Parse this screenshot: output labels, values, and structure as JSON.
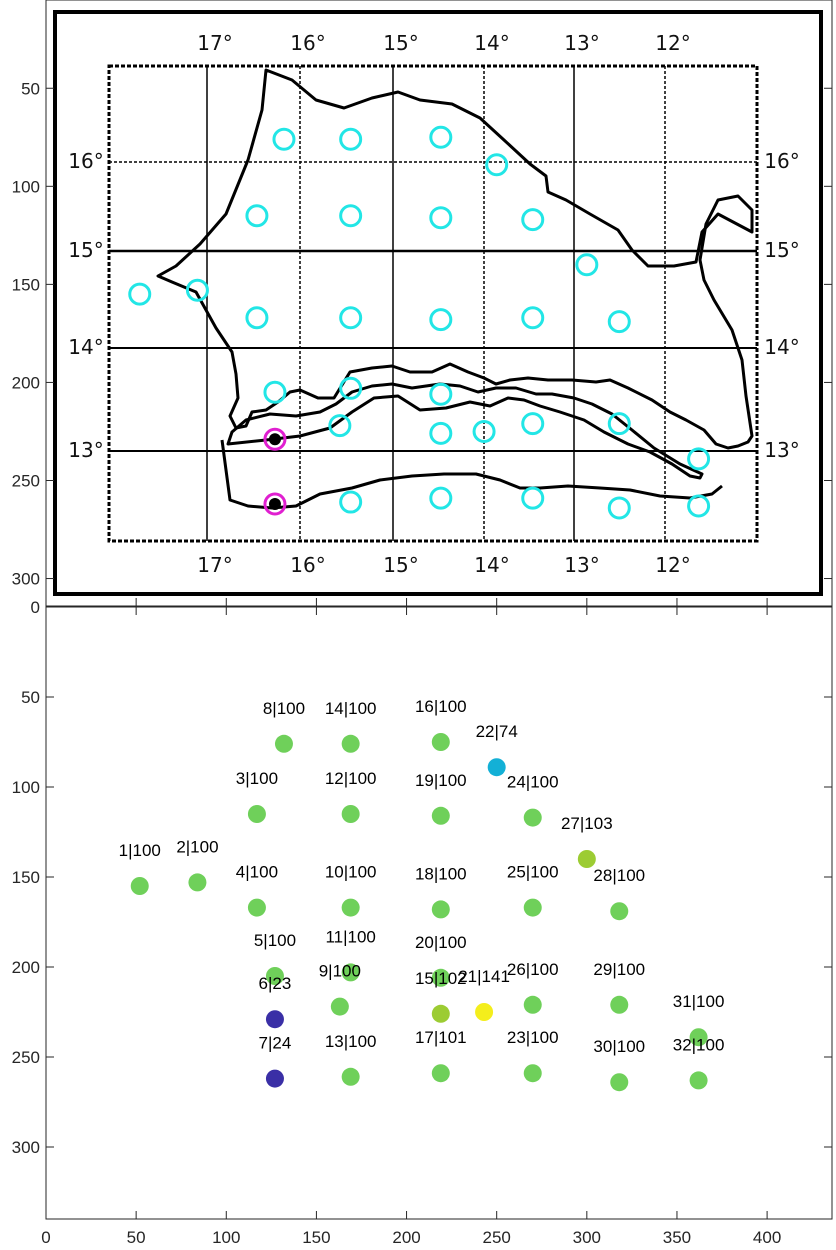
{
  "chart_data": [
    {
      "type": "map",
      "map_labels": {
        "top_longitudes": [
          "17°",
          "16°",
          "15°",
          "14°",
          "13°",
          "12°"
        ],
        "bottom_longitudes": [
          "17°",
          "16°",
          "15°",
          "14°",
          "13°",
          "12°"
        ],
        "left_latitudes": [
          "16°",
          "15°",
          "14°",
          "13°"
        ],
        "right_latitudes": [
          "16°",
          "15°",
          "14°",
          "13°"
        ]
      },
      "xlim": [
        0,
        436
      ],
      "ylim": [
        5,
        314
      ],
      "yticks": [
        50,
        100,
        150,
        200,
        250,
        300
      ],
      "ytick_labels": [
        "50",
        "100",
        "150",
        "200",
        "250",
        "300"
      ],
      "stations": [
        {
          "x": 52,
          "y": 155,
          "ring": "cyan"
        },
        {
          "x": 84,
          "y": 153,
          "ring": "cyan"
        },
        {
          "x": 117,
          "y": 115,
          "ring": "cyan"
        },
        {
          "x": 117,
          "y": 167,
          "ring": "cyan"
        },
        {
          "x": 127,
          "y": 205,
          "ring": "cyan"
        },
        {
          "x": 127,
          "y": 229,
          "ring": "magenta"
        },
        {
          "x": 127,
          "y": 262,
          "ring": "magenta"
        },
        {
          "x": 132,
          "y": 76,
          "ring": "cyan"
        },
        {
          "x": 163,
          "y": 222,
          "ring": "cyan"
        },
        {
          "x": 169,
          "y": 167,
          "ring": "cyan"
        },
        {
          "x": 169,
          "y": 203,
          "ring": "cyan"
        },
        {
          "x": 169,
          "y": 115,
          "ring": "cyan"
        },
        {
          "x": 169,
          "y": 261,
          "ring": "cyan"
        },
        {
          "x": 169,
          "y": 76,
          "ring": "cyan"
        },
        {
          "x": 219,
          "y": 226,
          "ring": "cyan"
        },
        {
          "x": 219,
          "y": 75,
          "ring": "cyan"
        },
        {
          "x": 219,
          "y": 259,
          "ring": "cyan"
        },
        {
          "x": 219,
          "y": 168,
          "ring": "cyan"
        },
        {
          "x": 219,
          "y": 116,
          "ring": "cyan"
        },
        {
          "x": 219,
          "y": 206,
          "ring": "cyan"
        },
        {
          "x": 243,
          "y": 225,
          "ring": "cyan"
        },
        {
          "x": 250,
          "y": 89,
          "ring": "cyan"
        },
        {
          "x": 270,
          "y": 259,
          "ring": "cyan"
        },
        {
          "x": 270,
          "y": 117,
          "ring": "cyan"
        },
        {
          "x": 270,
          "y": 167,
          "ring": "cyan"
        },
        {
          "x": 270,
          "y": 221,
          "ring": "cyan"
        },
        {
          "x": 300,
          "y": 140,
          "ring": "cyan"
        },
        {
          "x": 318,
          "y": 169,
          "ring": "cyan"
        },
        {
          "x": 318,
          "y": 221,
          "ring": "cyan"
        },
        {
          "x": 318,
          "y": 264,
          "ring": "cyan"
        },
        {
          "x": 362,
          "y": 239,
          "ring": "cyan"
        },
        {
          "x": 362,
          "y": 263,
          "ring": "cyan"
        }
      ]
    },
    {
      "type": "scatter",
      "xlim": [
        0,
        436
      ],
      "ylim": [
        0,
        340
      ],
      "xticks": [
        0,
        50,
        100,
        150,
        200,
        250,
        300,
        350,
        400
      ],
      "xtick_labels": [
        "0",
        "50",
        "100",
        "150",
        "200",
        "250",
        "300",
        "350",
        "400"
      ],
      "yticks": [
        0,
        50,
        100,
        150,
        200,
        250,
        300
      ],
      "ytick_labels": [
        "0",
        "50",
        "100",
        "150",
        "200",
        "250",
        "300"
      ],
      "colors": {
        "green": "#6fd05a",
        "olive": "#9ccc33",
        "yellow": "#f4ee1c",
        "cyan": "#13b0d6",
        "navy": "#3a2fa6"
      },
      "points": [
        {
          "label": "1|100",
          "x": 52,
          "y": 155,
          "color": "green"
        },
        {
          "label": "2|100",
          "x": 84,
          "y": 153,
          "color": "green"
        },
        {
          "label": "3|100",
          "x": 117,
          "y": 115,
          "color": "green"
        },
        {
          "label": "4|100",
          "x": 117,
          "y": 167,
          "color": "green"
        },
        {
          "label": "5|100",
          "x": 127,
          "y": 205,
          "color": "green"
        },
        {
          "label": "6|23",
          "x": 127,
          "y": 229,
          "color": "navy"
        },
        {
          "label": "7|24",
          "x": 127,
          "y": 262,
          "color": "navy"
        },
        {
          "label": "8|100",
          "x": 132,
          "y": 76,
          "color": "green"
        },
        {
          "label": "9|100",
          "x": 163,
          "y": 222,
          "color": "green"
        },
        {
          "label": "10|100",
          "x": 169,
          "y": 167,
          "color": "green"
        },
        {
          "label": "11|100",
          "x": 169,
          "y": 203,
          "color": "green"
        },
        {
          "label": "12|100",
          "x": 169,
          "y": 115,
          "color": "green"
        },
        {
          "label": "13|100",
          "x": 169,
          "y": 261,
          "color": "green"
        },
        {
          "label": "14|100",
          "x": 169,
          "y": 76,
          "color": "green"
        },
        {
          "label": "15|102",
          "x": 219,
          "y": 226,
          "color": "olive"
        },
        {
          "label": "16|100",
          "x": 219,
          "y": 75,
          "color": "green"
        },
        {
          "label": "17|101",
          "x": 219,
          "y": 259,
          "color": "green"
        },
        {
          "label": "18|100",
          "x": 219,
          "y": 168,
          "color": "green"
        },
        {
          "label": "19|100",
          "x": 219,
          "y": 116,
          "color": "green"
        },
        {
          "label": "20|100",
          "x": 219,
          "y": 206,
          "color": "green"
        },
        {
          "label": "21|141",
          "x": 243,
          "y": 225,
          "color": "yellow"
        },
        {
          "label": "22|74",
          "x": 250,
          "y": 89,
          "color": "cyan"
        },
        {
          "label": "23|100",
          "x": 270,
          "y": 259,
          "color": "green"
        },
        {
          "label": "24|100",
          "x": 270,
          "y": 117,
          "color": "green"
        },
        {
          "label": "25|100",
          "x": 270,
          "y": 167,
          "color": "green"
        },
        {
          "label": "26|100",
          "x": 270,
          "y": 221,
          "color": "green"
        },
        {
          "label": "27|103",
          "x": 300,
          "y": 140,
          "color": "olive"
        },
        {
          "label": "28|100",
          "x": 318,
          "y": 169,
          "color": "green"
        },
        {
          "label": "29|100",
          "x": 318,
          "y": 221,
          "color": "green"
        },
        {
          "label": "30|100",
          "x": 318,
          "y": 264,
          "color": "green"
        },
        {
          "label": "31|100",
          "x": 362,
          "y": 239,
          "color": "green"
        },
        {
          "label": "32|100",
          "x": 362,
          "y": 263,
          "color": "green"
        }
      ]
    }
  ]
}
